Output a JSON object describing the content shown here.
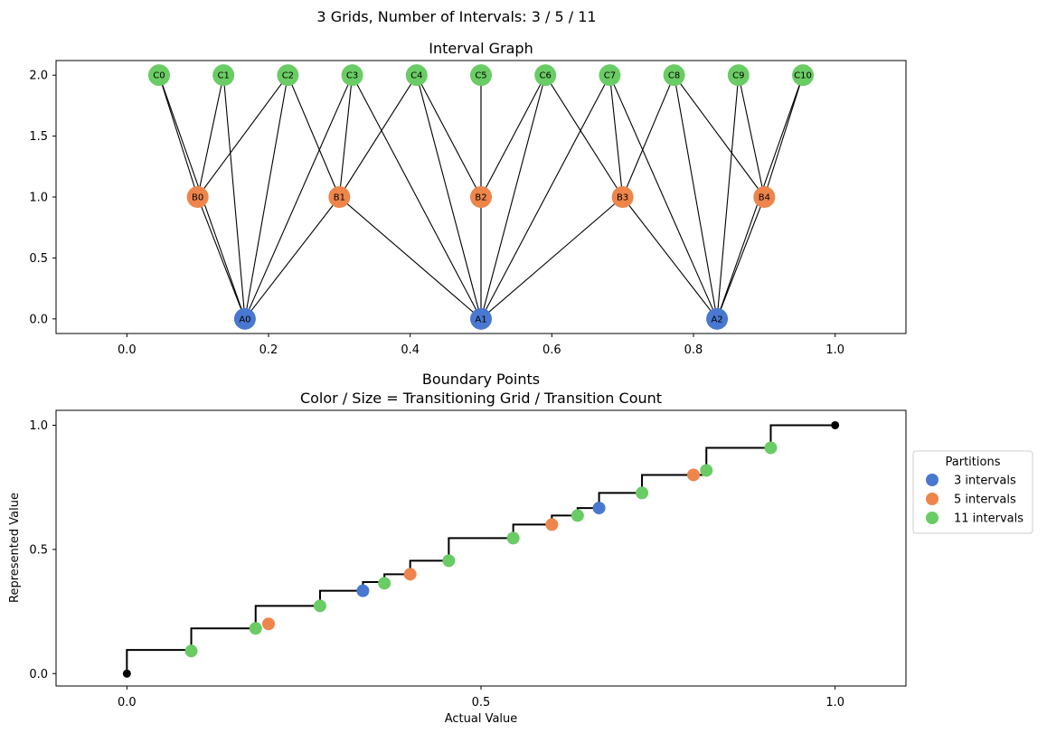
{
  "figure_title": "3 Grids, Number of Intervals: 3 / 5 / 11",
  "colors": {
    "A": "#4878d0",
    "B": "#ee854a",
    "C": "#6acc64",
    "step": "#000000",
    "endpoint": "#000000"
  },
  "chart_data": [
    {
      "type": "scatter",
      "subtype": "network-graph",
      "title": "Interval Graph",
      "xlabel": "",
      "ylabel": "",
      "xlim": [
        -0.1,
        1.1
      ],
      "ylim": [
        -0.12,
        2.12
      ],
      "xticks": [
        0.0,
        0.2,
        0.4,
        0.6,
        0.8,
        1.0
      ],
      "xtick_labels": [
        "0.0",
        "0.2",
        "0.4",
        "0.6",
        "0.8",
        "1.0"
      ],
      "yticks": [
        0.0,
        0.5,
        1.0,
        1.5,
        2.0
      ],
      "ytick_labels": [
        "0.0",
        "0.5",
        "1.0",
        "1.5",
        "2.0"
      ],
      "grid": false,
      "nodes": [
        {
          "id": "A0",
          "group": "A",
          "x": 0.1667,
          "y": 0
        },
        {
          "id": "A1",
          "group": "A",
          "x": 0.5,
          "y": 0
        },
        {
          "id": "A2",
          "group": "A",
          "x": 0.8333,
          "y": 0
        },
        {
          "id": "B0",
          "group": "B",
          "x": 0.1,
          "y": 1
        },
        {
          "id": "B1",
          "group": "B",
          "x": 0.3,
          "y": 1
        },
        {
          "id": "B2",
          "group": "B",
          "x": 0.5,
          "y": 1
        },
        {
          "id": "B3",
          "group": "B",
          "x": 0.7,
          "y": 1
        },
        {
          "id": "B4",
          "group": "B",
          "x": 0.9,
          "y": 1
        },
        {
          "id": "C0",
          "group": "C",
          "x": 0.0455,
          "y": 2
        },
        {
          "id": "C1",
          "group": "C",
          "x": 0.1364,
          "y": 2
        },
        {
          "id": "C2",
          "group": "C",
          "x": 0.2273,
          "y": 2
        },
        {
          "id": "C3",
          "group": "C",
          "x": 0.3182,
          "y": 2
        },
        {
          "id": "C4",
          "group": "C",
          "x": 0.4091,
          "y": 2
        },
        {
          "id": "C5",
          "group": "C",
          "x": 0.5,
          "y": 2
        },
        {
          "id": "C6",
          "group": "C",
          "x": 0.5909,
          "y": 2
        },
        {
          "id": "C7",
          "group": "C",
          "x": 0.6818,
          "y": 2
        },
        {
          "id": "C8",
          "group": "C",
          "x": 0.7727,
          "y": 2
        },
        {
          "id": "C9",
          "group": "C",
          "x": 0.8636,
          "y": 2
        },
        {
          "id": "C10",
          "group": "C",
          "x": 0.9545,
          "y": 2
        }
      ],
      "edges": [
        [
          "A0",
          "B0"
        ],
        [
          "A0",
          "B1"
        ],
        [
          "A0",
          "C0"
        ],
        [
          "A0",
          "C1"
        ],
        [
          "A0",
          "C2"
        ],
        [
          "A0",
          "C3"
        ],
        [
          "A1",
          "B1"
        ],
        [
          "A1",
          "B2"
        ],
        [
          "A1",
          "B3"
        ],
        [
          "A1",
          "C3"
        ],
        [
          "A1",
          "C4"
        ],
        [
          "A1",
          "C5"
        ],
        [
          "A1",
          "C6"
        ],
        [
          "A1",
          "C7"
        ],
        [
          "A2",
          "B3"
        ],
        [
          "A2",
          "B4"
        ],
        [
          "A2",
          "C7"
        ],
        [
          "A2",
          "C8"
        ],
        [
          "A2",
          "C9"
        ],
        [
          "A2",
          "C10"
        ],
        [
          "B0",
          "C0"
        ],
        [
          "B0",
          "C1"
        ],
        [
          "B0",
          "C2"
        ],
        [
          "B1",
          "C2"
        ],
        [
          "B1",
          "C3"
        ],
        [
          "B1",
          "C4"
        ],
        [
          "B2",
          "C4"
        ],
        [
          "B2",
          "C5"
        ],
        [
          "B2",
          "C6"
        ],
        [
          "B3",
          "C6"
        ],
        [
          "B3",
          "C7"
        ],
        [
          "B3",
          "C8"
        ],
        [
          "B4",
          "C8"
        ],
        [
          "B4",
          "C9"
        ],
        [
          "B4",
          "C10"
        ]
      ]
    },
    {
      "type": "scatter",
      "subtype": "step-with-points",
      "title": "Boundary Points",
      "subtitle": "Color / Size = Transitioning Grid / Transition Count",
      "xlabel": "Actual Value",
      "ylabel": "Represented Value",
      "xlim": [
        -0.1,
        1.1
      ],
      "ylim": [
        -0.05,
        1.06
      ],
      "xticks": [
        0.0,
        0.5,
        1.0
      ],
      "xtick_labels": [
        "0.0",
        "0.5",
        "1.0"
      ],
      "yticks": [
        0.0,
        0.5,
        1.0
      ],
      "ytick_labels": [
        "0.0",
        "0.5",
        "1.0"
      ],
      "grid": false,
      "legend": {
        "title": "Partitions",
        "position": "outside-right",
        "entries": [
          {
            "label": "3 intervals",
            "group": "A"
          },
          {
            "label": "5 intervals",
            "group": "B"
          },
          {
            "label": "11 intervals",
            "group": "C"
          }
        ]
      },
      "step_x": [
        0,
        0.0909,
        0.1818,
        0.2,
        0.2727,
        0.3333,
        0.3636,
        0.4,
        0.4545,
        0.5455,
        0.6,
        0.6364,
        0.6667,
        0.7273,
        0.8,
        0.8182,
        0.9091,
        1.0
      ],
      "step_y": [
        0.0952,
        0.1818,
        0.2727,
        0.2727,
        0.3333,
        0.3684,
        0.4,
        0.4545,
        0.5455,
        0.6,
        0.6364,
        0.6667,
        0.7273,
        0.8,
        0.8,
        0.9091,
        1.0,
        1.0
      ],
      "endpoints": [
        {
          "x": 0,
          "y": 0
        },
        {
          "x": 1,
          "y": 1
        }
      ],
      "points": [
        {
          "x": 0.0909,
          "y": 0.0909,
          "group": "C"
        },
        {
          "x": 0.1818,
          "y": 0.1818,
          "group": "C"
        },
        {
          "x": 0.2,
          "y": 0.2,
          "group": "B"
        },
        {
          "x": 0.2727,
          "y": 0.2727,
          "group": "C"
        },
        {
          "x": 0.3333,
          "y": 0.3333,
          "group": "A"
        },
        {
          "x": 0.3636,
          "y": 0.3636,
          "group": "C"
        },
        {
          "x": 0.4,
          "y": 0.4,
          "group": "B"
        },
        {
          "x": 0.4545,
          "y": 0.4545,
          "group": "C"
        },
        {
          "x": 0.5455,
          "y": 0.5455,
          "group": "C"
        },
        {
          "x": 0.6,
          "y": 0.6,
          "group": "B"
        },
        {
          "x": 0.6364,
          "y": 0.6364,
          "group": "C"
        },
        {
          "x": 0.6667,
          "y": 0.6667,
          "group": "A"
        },
        {
          "x": 0.7273,
          "y": 0.7273,
          "group": "C"
        },
        {
          "x": 0.8,
          "y": 0.8,
          "group": "B"
        },
        {
          "x": 0.8182,
          "y": 0.8182,
          "group": "C"
        },
        {
          "x": 0.9091,
          "y": 0.9091,
          "group": "C"
        }
      ]
    }
  ]
}
